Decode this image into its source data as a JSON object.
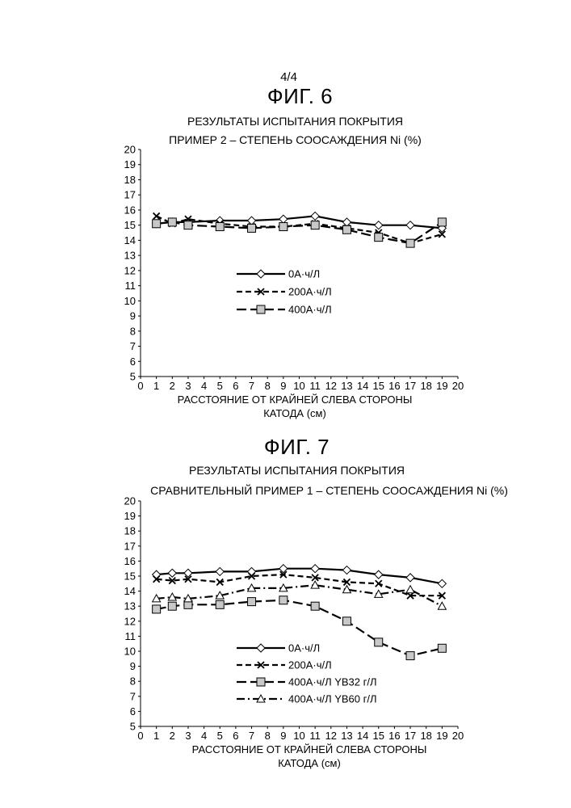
{
  "page": {
    "number": "4/4",
    "fig6_title": "ФИГ. 6",
    "fig6_subtitle": "РЕЗУЛЬТАТЫ ИСПЫТАНИЯ ПОКРЫТИЯ",
    "fig7_title": "ФИГ. 7",
    "fig7_subtitle": "РЕЗУЛЬТАТЫ ИСПЫТАНИЯ ПОКРЫТИЯ"
  },
  "chart_data": [
    {
      "type": "line",
      "title": "ПРИМЕР 2 – СТЕПЕНЬ СООСАЖДЕНИЯ Ni (%)",
      "xlabel": [
        "РАССТОЯНИЕ ОТ КРАЙНЕЙ СЛЕВА СТОРОНЫ",
        "КАТОДА (см)"
      ],
      "ylabel": "",
      "xlim": [
        0,
        20
      ],
      "ylim": [
        5,
        20
      ],
      "x_ticks": [
        0,
        1,
        2,
        3,
        4,
        5,
        6,
        7,
        8,
        9,
        10,
        11,
        12,
        13,
        14,
        15,
        16,
        17,
        18,
        19,
        20
      ],
      "y_ticks": [
        5,
        6,
        7,
        8,
        9,
        10,
        11,
        12,
        13,
        14,
        15,
        16,
        17,
        18,
        19,
        20
      ],
      "grid": false,
      "legend_position": "center",
      "series": [
        {
          "name": "0А·ч/Л",
          "style": "solid",
          "marker": "diamond",
          "x": [
            1,
            2,
            3,
            5,
            7,
            9,
            11,
            13,
            15,
            17,
            19
          ],
          "y": [
            15.1,
            15.2,
            15.2,
            15.3,
            15.3,
            15.4,
            15.6,
            15.2,
            15.0,
            15.0,
            14.8
          ]
        },
        {
          "name": "200А·ч/Л",
          "style": "dashed",
          "marker": "x",
          "x": [
            1,
            2,
            3,
            5,
            7,
            9,
            11,
            13,
            15,
            17,
            19
          ],
          "y": [
            15.6,
            15.1,
            15.4,
            15.1,
            14.9,
            14.9,
            15.1,
            14.8,
            14.5,
            13.8,
            14.4
          ]
        },
        {
          "name": "400А·ч/Л",
          "style": "longdash",
          "marker": "square",
          "x": [
            1,
            2,
            3,
            5,
            7,
            9,
            11,
            13,
            15,
            17,
            19
          ],
          "y": [
            15.1,
            15.2,
            15.0,
            14.9,
            14.8,
            14.9,
            15.0,
            14.7,
            14.2,
            13.8,
            15.2
          ]
        }
      ]
    },
    {
      "type": "line",
      "title": "СРАВНИТЕЛЬНЫЙ ПРИМЕР 1 – СТЕПЕНЬ СООСАЖДЕНИЯ Ni (%)",
      "xlabel": [
        "РАССТОЯНИЕ ОТ КРАЙНЕЙ СЛЕВА СТОРОНЫ",
        "КАТОДА (см)"
      ],
      "ylabel": "",
      "xlim": [
        0,
        20
      ],
      "ylim": [
        5,
        20
      ],
      "x_ticks": [
        0,
        1,
        2,
        3,
        4,
        5,
        6,
        7,
        8,
        9,
        10,
        11,
        12,
        13,
        14,
        15,
        16,
        17,
        18,
        19,
        20
      ],
      "y_ticks": [
        5,
        6,
        7,
        8,
        9,
        10,
        11,
        12,
        13,
        14,
        15,
        16,
        17,
        18,
        19,
        20
      ],
      "grid": false,
      "legend_position": "bottom-center",
      "series": [
        {
          "name": "0А·ч/Л",
          "style": "solid",
          "marker": "diamond",
          "x": [
            1,
            2,
            3,
            5,
            7,
            9,
            11,
            13,
            15,
            17,
            19
          ],
          "y": [
            15.1,
            15.2,
            15.2,
            15.3,
            15.3,
            15.5,
            15.5,
            15.4,
            15.1,
            14.9,
            14.5
          ]
        },
        {
          "name": "200А·ч/Л",
          "style": "dashed",
          "marker": "x",
          "x": [
            1,
            2,
            3,
            5,
            7,
            9,
            11,
            13,
            15,
            17,
            19
          ],
          "y": [
            14.8,
            14.7,
            14.8,
            14.6,
            15.0,
            15.1,
            14.9,
            14.6,
            14.5,
            13.7,
            13.7
          ]
        },
        {
          "name": "400А·ч/Л YB32 г/Л",
          "style": "longdash",
          "marker": "square",
          "x": [
            1,
            2,
            3,
            5,
            7,
            9,
            11,
            13,
            15,
            17,
            19
          ],
          "y": [
            12.8,
            13.0,
            13.1,
            13.1,
            13.3,
            13.4,
            13.0,
            12.0,
            10.6,
            9.7,
            10.2
          ]
        },
        {
          "name": "400А·ч/Л YB60 г/Л",
          "style": "dashdot",
          "marker": "triangle",
          "x": [
            1,
            2,
            3,
            5,
            7,
            9,
            11,
            13,
            15,
            17,
            19
          ],
          "y": [
            13.5,
            13.6,
            13.5,
            13.7,
            14.2,
            14.2,
            14.4,
            14.1,
            13.8,
            14.1,
            13.0
          ]
        }
      ]
    }
  ]
}
